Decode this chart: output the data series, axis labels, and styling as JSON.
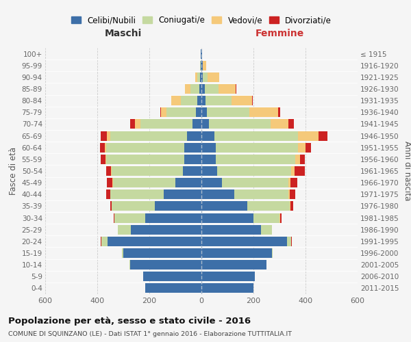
{
  "age_groups": [
    "0-4",
    "5-9",
    "10-14",
    "15-19",
    "20-24",
    "25-29",
    "30-34",
    "35-39",
    "40-44",
    "45-49",
    "50-54",
    "55-59",
    "60-64",
    "65-69",
    "70-74",
    "75-79",
    "80-84",
    "85-89",
    "90-94",
    "95-99",
    "100+"
  ],
  "birth_years": [
    "2011-2015",
    "2006-2010",
    "2001-2005",
    "1996-2000",
    "1991-1995",
    "1986-1990",
    "1981-1985",
    "1976-1980",
    "1971-1975",
    "1966-1970",
    "1961-1965",
    "1956-1960",
    "1951-1955",
    "1946-1950",
    "1941-1945",
    "1936-1940",
    "1931-1935",
    "1926-1930",
    "1921-1925",
    "1916-1920",
    "≤ 1915"
  ],
  "male": {
    "celibe": [
      215,
      225,
      275,
      300,
      360,
      270,
      215,
      180,
      145,
      100,
      70,
      65,
      65,
      55,
      35,
      20,
      15,
      8,
      5,
      3,
      2
    ],
    "coniugato": [
      0,
      0,
      2,
      5,
      25,
      50,
      120,
      165,
      205,
      240,
      275,
      300,
      300,
      295,
      200,
      115,
      65,
      35,
      10,
      2,
      0
    ],
    "vedovo": [
      0,
      0,
      0,
      0,
      0,
      0,
      0,
      0,
      1,
      2,
      2,
      3,
      5,
      12,
      20,
      20,
      35,
      20,
      8,
      1,
      0
    ],
    "divorziato": [
      0,
      0,
      0,
      0,
      2,
      2,
      2,
      5,
      15,
      20,
      20,
      20,
      20,
      25,
      20,
      3,
      2,
      0,
      0,
      0,
      0
    ]
  },
  "female": {
    "nubile": [
      200,
      205,
      250,
      270,
      330,
      230,
      200,
      175,
      125,
      80,
      60,
      55,
      55,
      50,
      30,
      20,
      15,
      12,
      5,
      4,
      2
    ],
    "coniugata": [
      0,
      0,
      1,
      3,
      15,
      40,
      100,
      165,
      210,
      255,
      285,
      305,
      315,
      320,
      235,
      165,
      100,
      55,
      18,
      2,
      0
    ],
    "vedova": [
      0,
      0,
      0,
      0,
      0,
      0,
      2,
      2,
      5,
      8,
      12,
      20,
      30,
      80,
      70,
      110,
      80,
      65,
      45,
      12,
      1
    ],
    "divorziata": [
      0,
      0,
      0,
      0,
      2,
      2,
      5,
      10,
      20,
      25,
      40,
      18,
      20,
      35,
      20,
      8,
      3,
      2,
      0,
      0,
      0
    ]
  },
  "colors": {
    "celibe": "#3d6fa8",
    "coniugato": "#c5d9a0",
    "vedovo": "#f5c97a",
    "divorziato": "#cc2222"
  },
  "legend_labels": [
    "Celibi/Nubili",
    "Coniugati/e",
    "Vedovi/e",
    "Divorziati/e"
  ],
  "title": "Popolazione per età, sesso e stato civile - 2016",
  "subtitle": "COMUNE DI SQUINZANO (LE) - Dati ISTAT 1° gennaio 2016 - Elaborazione TUTTITALIA.IT",
  "xlabel_left": "Maschi",
  "xlabel_right": "Femmine",
  "ylabel_left": "Fasce di età",
  "ylabel_right": "Anni di nascita",
  "xlim": 600,
  "bg_color": "#f5f5f5",
  "grid_color": "#cccccc"
}
